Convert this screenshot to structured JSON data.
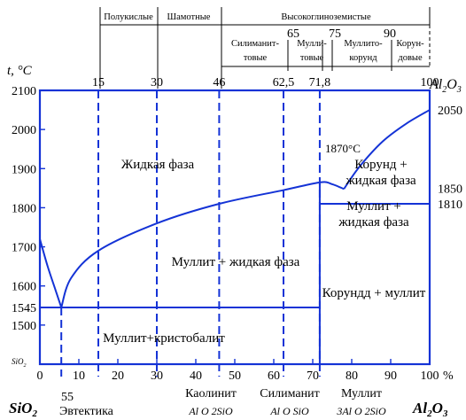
{
  "axes": {
    "y_unit": "t, °C",
    "x_unit": "%",
    "left_component": "SiO",
    "left_component_sub": "2",
    "right_component": "Al",
    "right_component_sub1": "2",
    "right_component_o": "O",
    "right_component_sub2": "3",
    "left_axis_small": "SiO",
    "left_axis_small_sub": "2",
    "y_ticks": [
      "2100",
      "2000",
      "1900",
      "1800",
      "1700",
      "1600",
      "1545",
      "1500"
    ],
    "x_ticks": [
      "0",
      "10",
      "20",
      "30",
      "40",
      "50",
      "60",
      "70",
      "80",
      "90",
      "100"
    ],
    "top_ticks": [
      "15",
      "30",
      "46",
      "62,5",
      "71,8",
      "100"
    ],
    "top_right_label": "Al",
    "top_right_sub1": "2",
    "top_right_o": "O",
    "top_right_sub2": "3",
    "right_temps": [
      "2050",
      "1850",
      "1810"
    ]
  },
  "regions": {
    "liquid": "Жидкая фаза",
    "mullite_liquid": "Муллит + жидкая фаза",
    "corundum_liquid_1": "Корунд +",
    "corundum_liquid_2": "жидкая фаза",
    "mullite_liquid_r1": "Муллит +",
    "mullite_liquid_r2": "жидкая фаза",
    "corundum_mullite": "Корундд + муллит",
    "mullite_cristobalite": "Муллит+кристобалит",
    "point_1870": "1870°С"
  },
  "bottom_labels": {
    "eutectic_value": "55",
    "eutectic": "Эвтектика",
    "kaolinite": "Каолинит",
    "kaolinite_formula": "Al O  2SiO",
    "sillimanite": "Силиманит",
    "sillimanite_formula": "Al O  SiO",
    "mullite": "Муллит",
    "mullite_formula": "3Al O  2SiO"
  },
  "classification": {
    "semi_acid": "Полукислые",
    "fireclay": "Шамотные",
    "high_alumina": "Высокоглиноземистые",
    "sillimanite_1": "Силиманит-",
    "sillimanite_2": "товые",
    "mullite_1": "Мулли-",
    "mullite_2": "товые",
    "mullite_corundum_1": "Муллито-",
    "mullite_corundum_2": "корунд",
    "corundum_1": "Корун-",
    "corundum_2": "довые",
    "mark_65": "65",
    "mark_75": "75",
    "mark_90": "90"
  },
  "chart_data": {
    "type": "line",
    "xlabel": "%",
    "ylabel": "t, °C",
    "xlim": [
      0,
      100
    ],
    "ylim": [
      1400,
      2100
    ],
    "series": [
      {
        "x": [
          0,
          2,
          4,
          5.5
        ],
        "y": [
          1720,
          1650,
          1590,
          1545
        ]
      },
      {
        "x": [
          5.5,
          8,
          15,
          30,
          46,
          62.5,
          72,
          75,
          78
        ],
        "y": [
          1545,
          1620,
          1690,
          1760,
          1810,
          1845,
          1865,
          1860,
          1848
        ]
      },
      {
        "x": [
          78,
          82,
          88,
          94,
          100
        ],
        "y": [
          1848,
          1905,
          1970,
          2015,
          2050
        ]
      }
    ],
    "annotations": {
      "eutectic": {
        "x": 5.5,
        "y": 1545
      },
      "peritectic_horizontal": {
        "x_from": 71.8,
        "x_to": 100,
        "y": 1810
      },
      "eutectic_horizontal": {
        "x_from": 0,
        "x_to": 71.8,
        "y": 1545
      },
      "mullite_vertical": {
        "x": 71.8,
        "y_from": 1400,
        "y_to": 1860
      }
    },
    "dashed_x": [
      5.5,
      15,
      30,
      46,
      62.5,
      71.8
    ]
  }
}
